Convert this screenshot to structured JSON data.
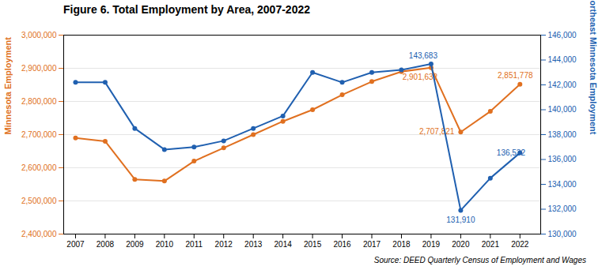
{
  "chart_data": {
    "type": "line",
    "title": "Figure 6. Total Employment by Area, 2007-2022",
    "source": "Source: DEED Quarterly Census of Employment and Wages",
    "x": [
      2007,
      2008,
      2009,
      2010,
      2011,
      2012,
      2013,
      2014,
      2015,
      2016,
      2017,
      2018,
      2019,
      2020,
      2021,
      2022
    ],
    "xlim": [
      2006.6,
      2022.7
    ],
    "xticks": [
      2007,
      2008,
      2009,
      2010,
      2011,
      2012,
      2013,
      2014,
      2015,
      2016,
      2017,
      2018,
      2019,
      2020,
      2021,
      2022
    ],
    "ylabel": "Minnesota Employment",
    "y2label": "Northeast Minnesota Employment",
    "ylim": [
      2400000,
      3000000
    ],
    "yticks": [
      {
        "value": 2400000,
        "label": "2,400,000"
      },
      {
        "value": 2500000,
        "label": "2,500,000"
      },
      {
        "value": 2600000,
        "label": "2,600,000"
      },
      {
        "value": 2700000,
        "label": "2,700,000"
      },
      {
        "value": 2800000,
        "label": "2,800,000"
      },
      {
        "value": 2900000,
        "label": "2,900,000"
      },
      {
        "value": 3000000,
        "label": "3,000,000"
      }
    ],
    "y2lim": [
      130000,
      146000
    ],
    "y2ticks": [
      {
        "value": 130000,
        "label": "130,000"
      },
      {
        "value": 132000,
        "label": "132,000"
      },
      {
        "value": 134000,
        "label": "134,000"
      },
      {
        "value": 136000,
        "label": "136,000"
      },
      {
        "value": 138000,
        "label": "138,000"
      },
      {
        "value": 140000,
        "label": "140,000"
      },
      {
        "value": 142000,
        "label": "142,000"
      },
      {
        "value": 144000,
        "label": "144,000"
      },
      {
        "value": 146000,
        "label": "146,000"
      }
    ],
    "grid": true,
    "series": [
      {
        "color": "#E07020",
        "marker": "o",
        "axis": "y",
        "values": [
          2690000,
          2680000,
          2565000,
          2560000,
          2620000,
          2660000,
          2700000,
          2740000,
          2775000,
          2820000,
          2860000,
          2890000,
          2901632,
          2707821,
          2770000,
          2851778
        ]
      },
      {
        "color": "#2060B0",
        "marker": "o",
        "axis": "y2",
        "values": [
          142200,
          142200,
          138500,
          136800,
          137000,
          137500,
          138500,
          139500,
          143000,
          142200,
          143000,
          143200,
          143683,
          131910,
          134500,
          136532
        ]
      }
    ],
    "annotations": [
      {
        "text": "143,683",
        "x": 2019,
        "y": 143683,
        "axis": "y2"
      },
      {
        "text": "131,910",
        "x": 2020,
        "y": 131910,
        "axis": "y2"
      },
      {
        "text": "136,532",
        "x": 2021,
        "y": 136532,
        "axis": "y2"
      },
      {
        "text": "2,901,632",
        "x": 2019,
        "y": 2901632,
        "axis": "y"
      },
      {
        "text": "2,707,821",
        "x": 2020,
        "y": 2707821,
        "axis": "y"
      },
      {
        "text": "2,851,778",
        "x": 2022,
        "y": 2851778,
        "axis": "y"
      }
    ]
  }
}
